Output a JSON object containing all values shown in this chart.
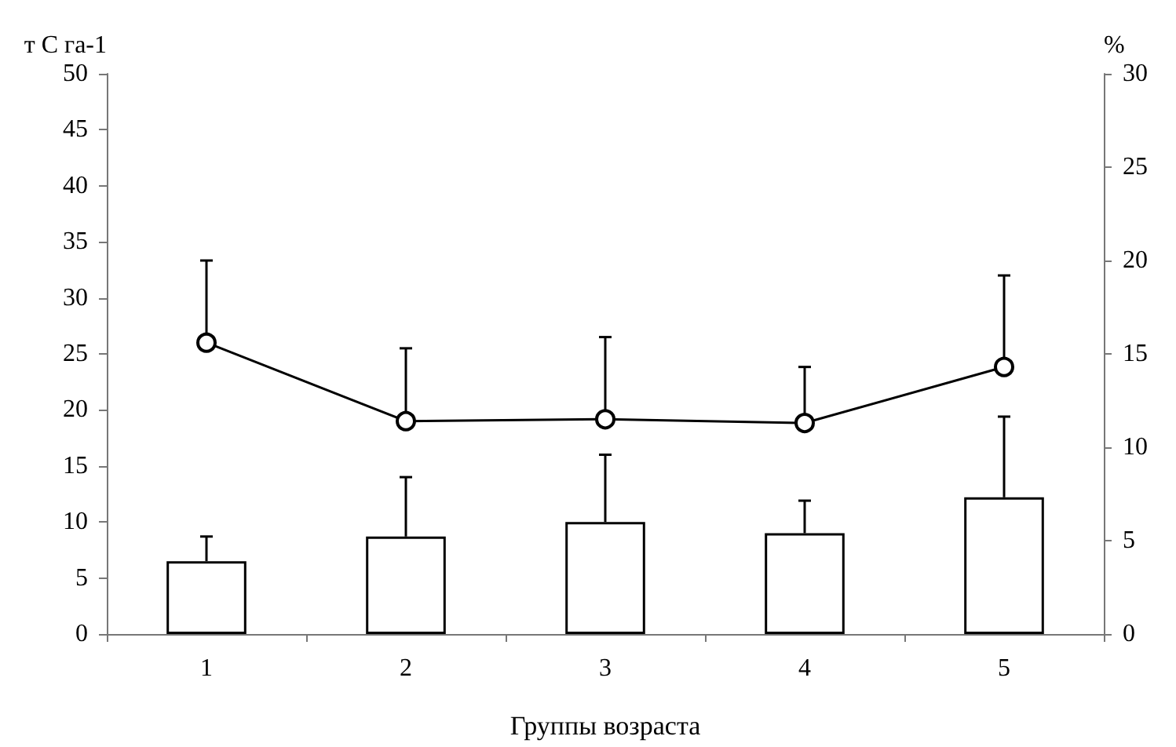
{
  "chart_data": {
    "type": "bar",
    "xlabel": "Группы возраста",
    "ylabel": "т С га-1",
    "y2label": "%",
    "categories": [
      "1",
      "2",
      "3",
      "4",
      "5"
    ],
    "series": [
      {
        "color": "#ffffff",
        "values": [
          6.5,
          8.7,
          10.0,
          9.0,
          12.2
        ],
        "errors": [
          [
            6.5,
            8.7
          ],
          [
            8.7,
            14.0
          ],
          [
            10.0,
            16.0
          ],
          [
            9.0,
            11.9
          ],
          [
            12.2,
            19.4
          ]
        ]
      },
      {
        "type": "line",
        "axis": "y2",
        "color": "#000000",
        "marker": "circle",
        "line_style": "solid",
        "values": [
          15.6,
          11.4,
          11.5,
          11.3,
          14.3
        ],
        "errors": [
          [
            15.6,
            20.0
          ],
          [
            11.4,
            15.3
          ],
          [
            11.5,
            15.9
          ],
          [
            11.3,
            14.3
          ],
          [
            14.3,
            19.2
          ]
        ]
      }
    ],
    "ylim": [
      0,
      50
    ],
    "yticks": [
      0,
      5,
      10,
      15,
      20,
      25,
      30,
      35,
      40,
      45,
      50
    ],
    "y2lim": [
      0,
      30
    ],
    "y2ticks": [
      0,
      5,
      10,
      15,
      20,
      25,
      30
    ],
    "grid": false
  }
}
